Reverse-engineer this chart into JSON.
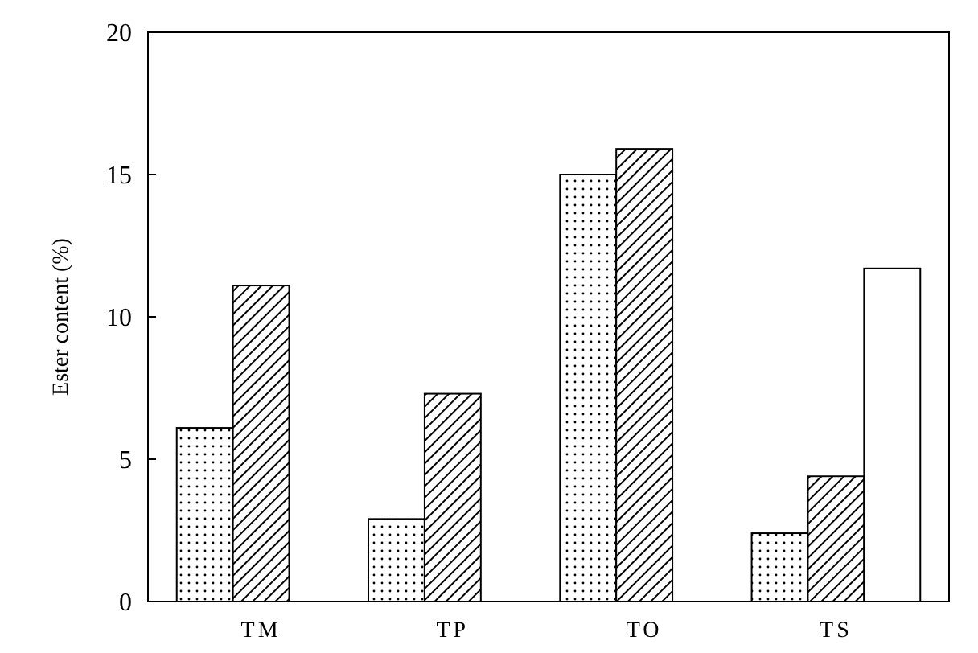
{
  "chart_data": {
    "type": "bar",
    "ylabel": "Ester content (%)",
    "categories": [
      "TM",
      "TP",
      "TO",
      "TS"
    ],
    "series": [
      {
        "color": "#000000",
        "values": [
          6.1,
          2.9,
          15.0,
          2.4
        ]
      },
      {
        "color": "#000000",
        "values": [
          11.1,
          7.3,
          15.9,
          4.4
        ]
      },
      {
        "color": "#ffffff",
        "values": [
          null,
          null,
          null,
          11.7
        ]
      }
    ],
    "ylim": [
      0,
      20
    ],
    "yticks": [
      0,
      5,
      10,
      15,
      20
    ],
    "grid": false
  }
}
